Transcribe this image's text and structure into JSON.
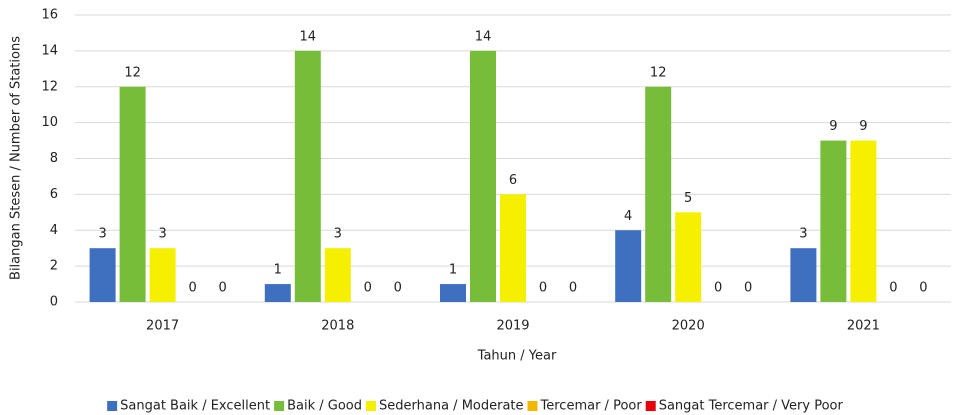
{
  "chart_data": {
    "type": "bar",
    "x_label": "Tahun / Year",
    "y_label": "Bilangan Stesen / Number of Stations",
    "categories": [
      "2017",
      "2018",
      "2019",
      "2020",
      "2021"
    ],
    "series": [
      {
        "name": "Sangat Baik / Excellent",
        "color": "#3f6fbf",
        "values": [
          3,
          1,
          1,
          4,
          3
        ]
      },
      {
        "name": "Baik / Good",
        "color": "#78bd3a",
        "values": [
          12,
          14,
          14,
          12,
          9
        ]
      },
      {
        "name": "Sederhana / Moderate",
        "color": "#f4f000",
        "values": [
          3,
          3,
          6,
          5,
          9
        ]
      },
      {
        "name": "Tercemar / Poor",
        "color": "#f2b800",
        "values": [
          0,
          0,
          0,
          0,
          0
        ]
      },
      {
        "name": "Sangat Tercemar / Very Poor",
        "color": "#e8000b",
        "values": [
          0,
          0,
          0,
          0,
          0
        ]
      }
    ],
    "ylim": [
      0,
      16
    ],
    "yticks": [
      0,
      2,
      4,
      6,
      8,
      10,
      12,
      14,
      16
    ],
    "grid": true,
    "legend": "bottom"
  }
}
